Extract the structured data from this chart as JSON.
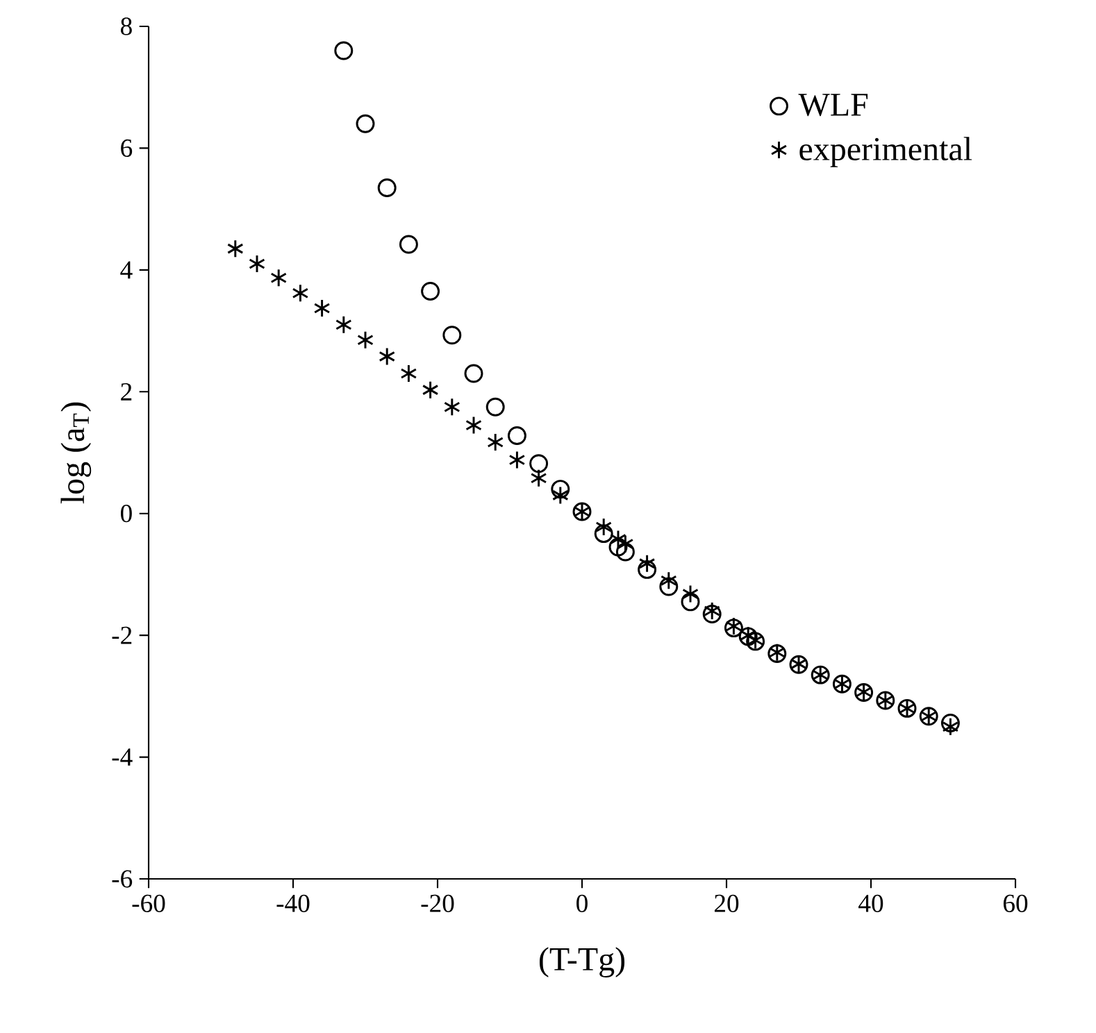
{
  "chart_data": {
    "type": "scatter",
    "xlabel": "(T-Tg)",
    "ylabel": "log (a$_{T}$)",
    "xlim": [
      -60,
      60
    ],
    "ylim": [
      -6,
      8
    ],
    "xticks": [
      -60,
      -40,
      -20,
      0,
      20,
      40,
      60
    ],
    "yticks": [
      -6,
      -4,
      -2,
      0,
      2,
      4,
      6,
      8
    ],
    "legend": "top right",
    "grid": false,
    "series": [
      {
        "name": "WLF",
        "color": "#000000",
        "marker": "circle",
        "x": [
          -33,
          -30,
          -27,
          -24,
          -21,
          -18,
          -15,
          -12,
          -9,
          -6,
          -3,
          0,
          3,
          5,
          6,
          9,
          12,
          15,
          18,
          21,
          23,
          24,
          27,
          30,
          33,
          36,
          39,
          42,
          45,
          48,
          51
        ],
        "values": [
          7.6,
          6.4,
          5.35,
          4.42,
          3.65,
          2.93,
          2.3,
          1.75,
          1.28,
          0.82,
          0.4,
          0.03,
          -0.33,
          -0.55,
          -0.63,
          -0.92,
          -1.2,
          -1.45,
          -1.65,
          -1.88,
          -2.02,
          -2.1,
          -2.3,
          -2.48,
          -2.65,
          -2.8,
          -2.94,
          -3.07,
          -3.2,
          -3.33,
          -3.44
        ]
      },
      {
        "name": "experimental",
        "color": "#000000",
        "marker": "cross",
        "x": [
          -48,
          -45,
          -42,
          -39,
          -36,
          -33,
          -30,
          -27,
          -24,
          -21,
          -18,
          -15,
          -12,
          -9,
          -6,
          -3,
          0,
          3,
          5,
          6,
          9,
          12,
          15,
          18,
          21,
          23,
          24,
          27,
          30,
          33,
          36,
          39,
          42,
          45,
          48,
          51
        ],
        "values": [
          4.35,
          4.1,
          3.87,
          3.62,
          3.37,
          3.1,
          2.85,
          2.58,
          2.3,
          2.03,
          1.75,
          1.45,
          1.17,
          0.88,
          0.58,
          0.3,
          0.03,
          -0.22,
          -0.42,
          -0.5,
          -0.82,
          -1.1,
          -1.32,
          -1.6,
          -1.85,
          -2.0,
          -2.08,
          -2.28,
          -2.47,
          -2.65,
          -2.8,
          -2.93,
          -3.07,
          -3.2,
          -3.33,
          -3.5
        ]
      }
    ]
  }
}
